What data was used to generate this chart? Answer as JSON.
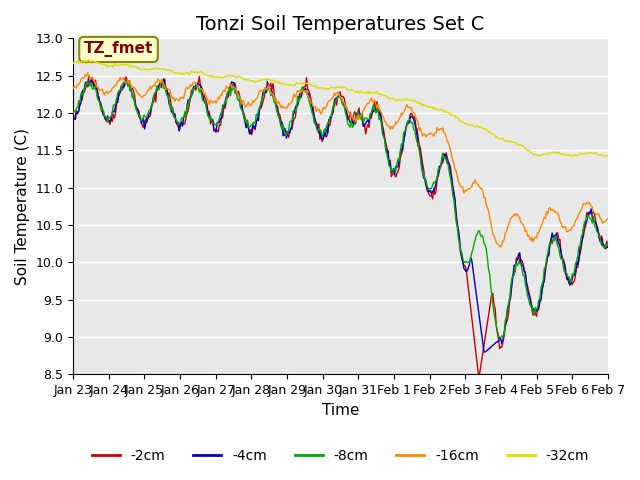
{
  "title": "Tonzi Soil Temperatures Set C",
  "xlabel": "Time",
  "ylabel": "Soil Temperature (C)",
  "ylim": [
    8.5,
    13.0
  ],
  "yticks": [
    8.5,
    9.0,
    9.5,
    10.0,
    10.5,
    11.0,
    11.5,
    12.0,
    12.5,
    13.0
  ],
  "x_tick_labels": [
    "Jan 23",
    "Jan 24",
    "Jan 25",
    "Jan 26",
    "Jan 27",
    "Jan 28",
    "Jan 29",
    "Jan 30",
    "Jan 31",
    "Feb 1",
    "Feb 2",
    "Feb 3",
    "Feb 4",
    "Feb 5",
    "Feb 6",
    "Feb 7"
  ],
  "line_colors": {
    "-2cm": "#cc0000",
    "-4cm": "#0000cc",
    "-8cm": "#00aa00",
    "-16cm": "#ff8800",
    "-32cm": "#dddd00"
  },
  "legend_labels": [
    "-2cm",
    "-4cm",
    "-8cm",
    "-16cm",
    "-32cm"
  ],
  "annotation_text": "TZ_fmet",
  "annotation_bg": "#ffffcc",
  "annotation_border": "#888800",
  "annotation_text_color": "#880000",
  "plot_bg": "#e8e8e8",
  "n_points": 480,
  "title_fontsize": 14,
  "axis_label_fontsize": 11,
  "tick_fontsize": 9,
  "legend_fontsize": 10
}
